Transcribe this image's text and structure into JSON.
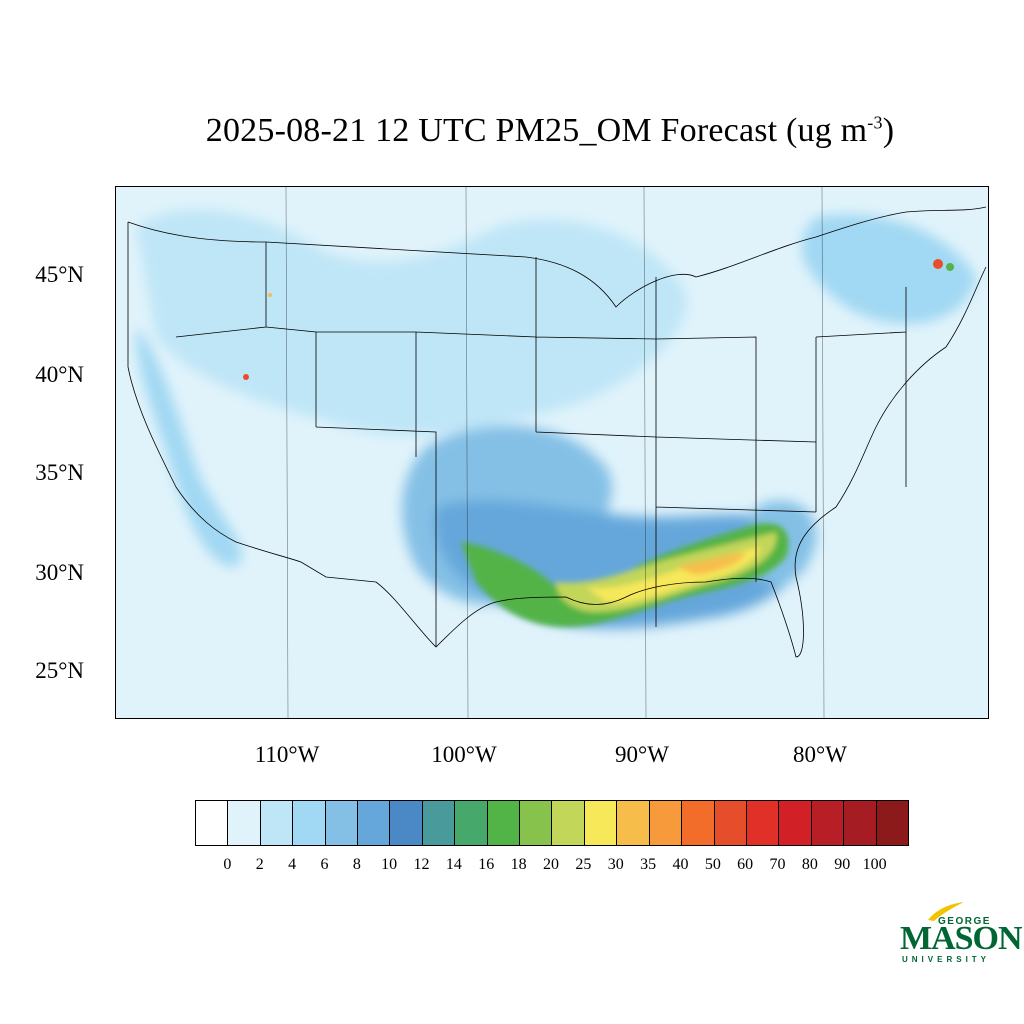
{
  "title": {
    "main": "2025-08-21 12 UTC PM25_OM Forecast (ug m",
    "superscript": "-3",
    "close": ")"
  },
  "axes": {
    "lat_labels": [
      "45°N",
      "40°N",
      "35°N",
      "30°N",
      "25°N"
    ],
    "lon_labels": [
      "110°W",
      "100°W",
      "90°W",
      "80°W"
    ]
  },
  "legend": {
    "colors": [
      "#ffffff",
      "#e0f3fb",
      "#bfe6f7",
      "#a1d8f3",
      "#84c0e6",
      "#65a7db",
      "#4a88c6",
      "#489a9b",
      "#47a86b",
      "#52b346",
      "#86c24c",
      "#c2d65a",
      "#f7e85a",
      "#f7bd4b",
      "#f69a3c",
      "#f26c2a",
      "#e64e2b",
      "#e03028",
      "#d22027",
      "#b81e25",
      "#a51c23",
      "#8c1a1b"
    ],
    "labels": [
      "0",
      "2",
      "4",
      "6",
      "8",
      "10",
      "12",
      "14",
      "16",
      "18",
      "20",
      "25",
      "30",
      "35",
      "40",
      "50",
      "60",
      "70",
      "80",
      "90",
      "100"
    ]
  },
  "logo": {
    "line1": "GEORGE",
    "line2": "MASON",
    "line3": "UNIVERSITY",
    "color": "#006633",
    "accent": "#f2c300"
  }
}
